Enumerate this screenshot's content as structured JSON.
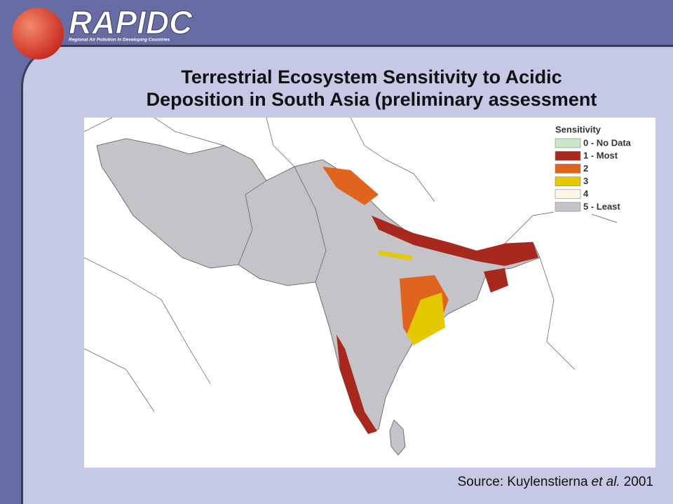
{
  "header": {
    "logo_title": "RAPIDC",
    "logo_subtitle": "Regional Air Pollution In Developing Countries"
  },
  "title": {
    "line1": "Terrestrial Ecosystem Sensitivity to Acidic",
    "line2": "Deposition in South Asia (preliminary assessment"
  },
  "legend": {
    "title": "Sensitivity",
    "items": [
      {
        "label": "0 - No Data",
        "color": "#c8e6c8"
      },
      {
        "label": "1 - Most",
        "color": "#a8281e"
      },
      {
        "label": "2",
        "color": "#e0641e"
      },
      {
        "label": "3",
        "color": "#e6c800"
      },
      {
        "label": "4",
        "color": "#fff5e6"
      },
      {
        "label": "5 - Least",
        "color": "#c4c4c8"
      }
    ]
  },
  "source": {
    "prefix": "Source: Kuylenstierna",
    "italic": "et al.",
    "year": "2001"
  }
}
